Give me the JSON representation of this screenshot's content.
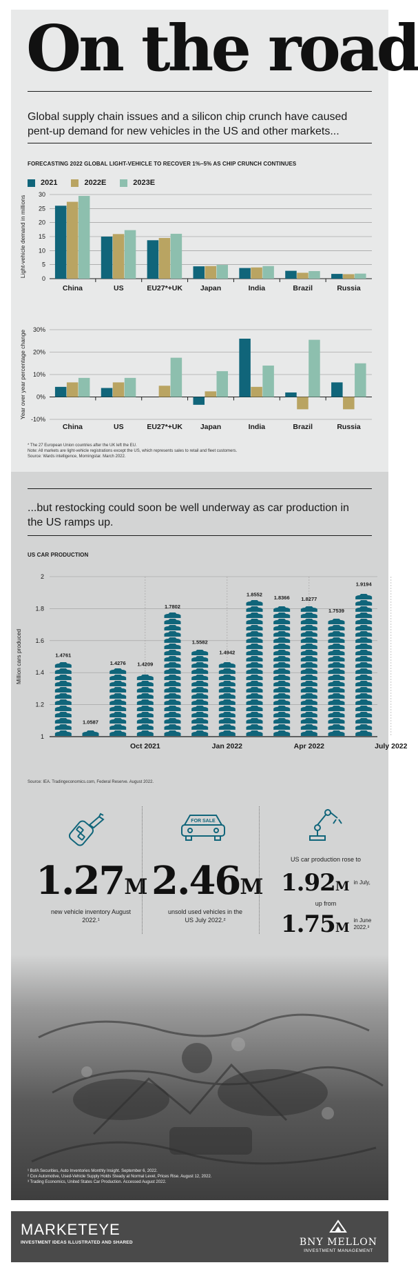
{
  "header": {
    "title": "On the road",
    "intro": "Global supply chain issues and a silicon chip crunch have caused pent-up demand for new vehicles in the US and other markets..."
  },
  "forecast": {
    "heading": "FORECASTING 2022 GLOBAL LIGHT-VEHICLE TO RECOVER 1%–5% AS CHIP CRUNCH CONTINUES",
    "legend": [
      "2021",
      "2022E",
      "2023E"
    ],
    "colors": [
      "#10657a",
      "#b9a462",
      "#8dbfae"
    ],
    "notes": [
      "* The 27 European Union countries after the UK left the EU.",
      "Note: All markets are light-vehicle registrations except the US, which represents sales to retail and fleet customers.",
      "Source: Wards intelligence, Morningstar. March 2022."
    ]
  },
  "restock": {
    "intro": "...but restocking could soon be well underway as car production in the US ramps up.",
    "heading": "US CAR PRODUCTION",
    "source": "Source: IEA. Tradingeconomics.com, Federal Reserve. August 2022."
  },
  "stats": {
    "inventory": {
      "value": "1.27",
      "unit": "M",
      "label": "new vehicle inventory August 2022.¹"
    },
    "used": {
      "badge": "FOR SALE",
      "value": "2.46",
      "unit": "M",
      "label": "unsold used vehicles in the US July 2022.²"
    },
    "production": {
      "label": "US car production rose to",
      "value1": "1.92",
      "unit1": "M",
      "when1": "in July,",
      "mid": "up from",
      "value2": "1.75",
      "unit2": "M",
      "when2": "in June 2022.³"
    }
  },
  "footnotes": [
    "¹ BofA Securities, Auto Inventories Monthly Insight. September 6, 2022.",
    "² Cox Automotive, Used-Vehicle Supply Holds Steady at Normal Level, Prices Rise. August 12, 2022.",
    "³ Trading Economics, United States Car Production. Accessed August 2022."
  ],
  "footer": {
    "brand": "MARKETEYE",
    "tagline": "INVESTMENT IDEAS ILLUSTRATED AND SHARED",
    "company": "BNY MELLON",
    "company_sub": "INVESTMENT MANAGEMENT"
  },
  "chart_data": [
    {
      "type": "bar",
      "title": "FORECASTING 2022 GLOBAL LIGHT-VEHICLE TO RECOVER 1%–5% AS CHIP CRUNCH CONTINUES",
      "ylabel": "Light-vehicle demand in millions",
      "categories": [
        "China",
        "US",
        "EU27*+UK",
        "Japan",
        "India",
        "Brazil",
        "Russia"
      ],
      "ylim": [
        0,
        30
      ],
      "yticks": [
        0,
        5,
        10,
        15,
        20,
        25,
        30
      ],
      "series": [
        {
          "name": "2021",
          "values": [
            26.0,
            15.0,
            13.7,
            4.4,
            3.8,
            2.8,
            1.7
          ]
        },
        {
          "name": "2022E",
          "values": [
            27.4,
            15.9,
            14.5,
            4.5,
            4.0,
            2.1,
            1.6
          ]
        },
        {
          "name": "2023E",
          "values": [
            29.5,
            17.3,
            16.0,
            4.9,
            4.5,
            2.7,
            1.8
          ]
        }
      ],
      "grid": true,
      "legend": "top-left"
    },
    {
      "type": "bar",
      "ylabel": "Year over year percentage change",
      "categories": [
        "China",
        "US",
        "EU27*+UK",
        "Japan",
        "India",
        "Brazil",
        "Russia"
      ],
      "ylim": [
        -10,
        30
      ],
      "yticks": [
        "-10%",
        "0%",
        "10%",
        "20%",
        "30%"
      ],
      "series": [
        {
          "name": "2021",
          "values": [
            4.5,
            4.0,
            0.0,
            -3.5,
            26.0,
            2.0,
            6.5
          ]
        },
        {
          "name": "2022E",
          "values": [
            6.5,
            6.5,
            5.0,
            2.5,
            4.5,
            -5.5,
            -5.5
          ]
        },
        {
          "name": "2023E",
          "values": [
            8.5,
            8.5,
            17.5,
            11.5,
            14.0,
            25.5,
            15.0
          ]
        }
      ],
      "grid": true
    },
    {
      "type": "bar",
      "title": "US CAR PRODUCTION",
      "ylabel": "Million cars produced",
      "ylim": [
        1,
        2
      ],
      "yticks": [
        "1",
        "1.2",
        "1.4",
        "1.6",
        "1.8",
        "2"
      ],
      "xtick_labels": [
        {
          "label": "Oct 2021",
          "index": 3.5
        },
        {
          "label": "Jan 2022",
          "index": 6.5
        },
        {
          "label": "Apr 2022",
          "index": 9.5
        },
        {
          "label": "July 2022",
          "index": 12.5
        }
      ],
      "values": [
        1.4761,
        1.0587,
        1.4276,
        1.4209,
        1.7802,
        1.5582,
        1.4942,
        1.8552,
        1.8366,
        1.8277,
        1.7539,
        1.9194
      ],
      "data_labels": [
        "1.4761",
        "1.0587",
        "1.4276",
        "1.4209",
        "1.7802",
        "1.5582",
        "1.4942",
        "1.8552",
        "1.8366",
        "1.8277",
        "1.7539",
        "1.9194"
      ],
      "color": "#10657a",
      "grid": true
    }
  ]
}
